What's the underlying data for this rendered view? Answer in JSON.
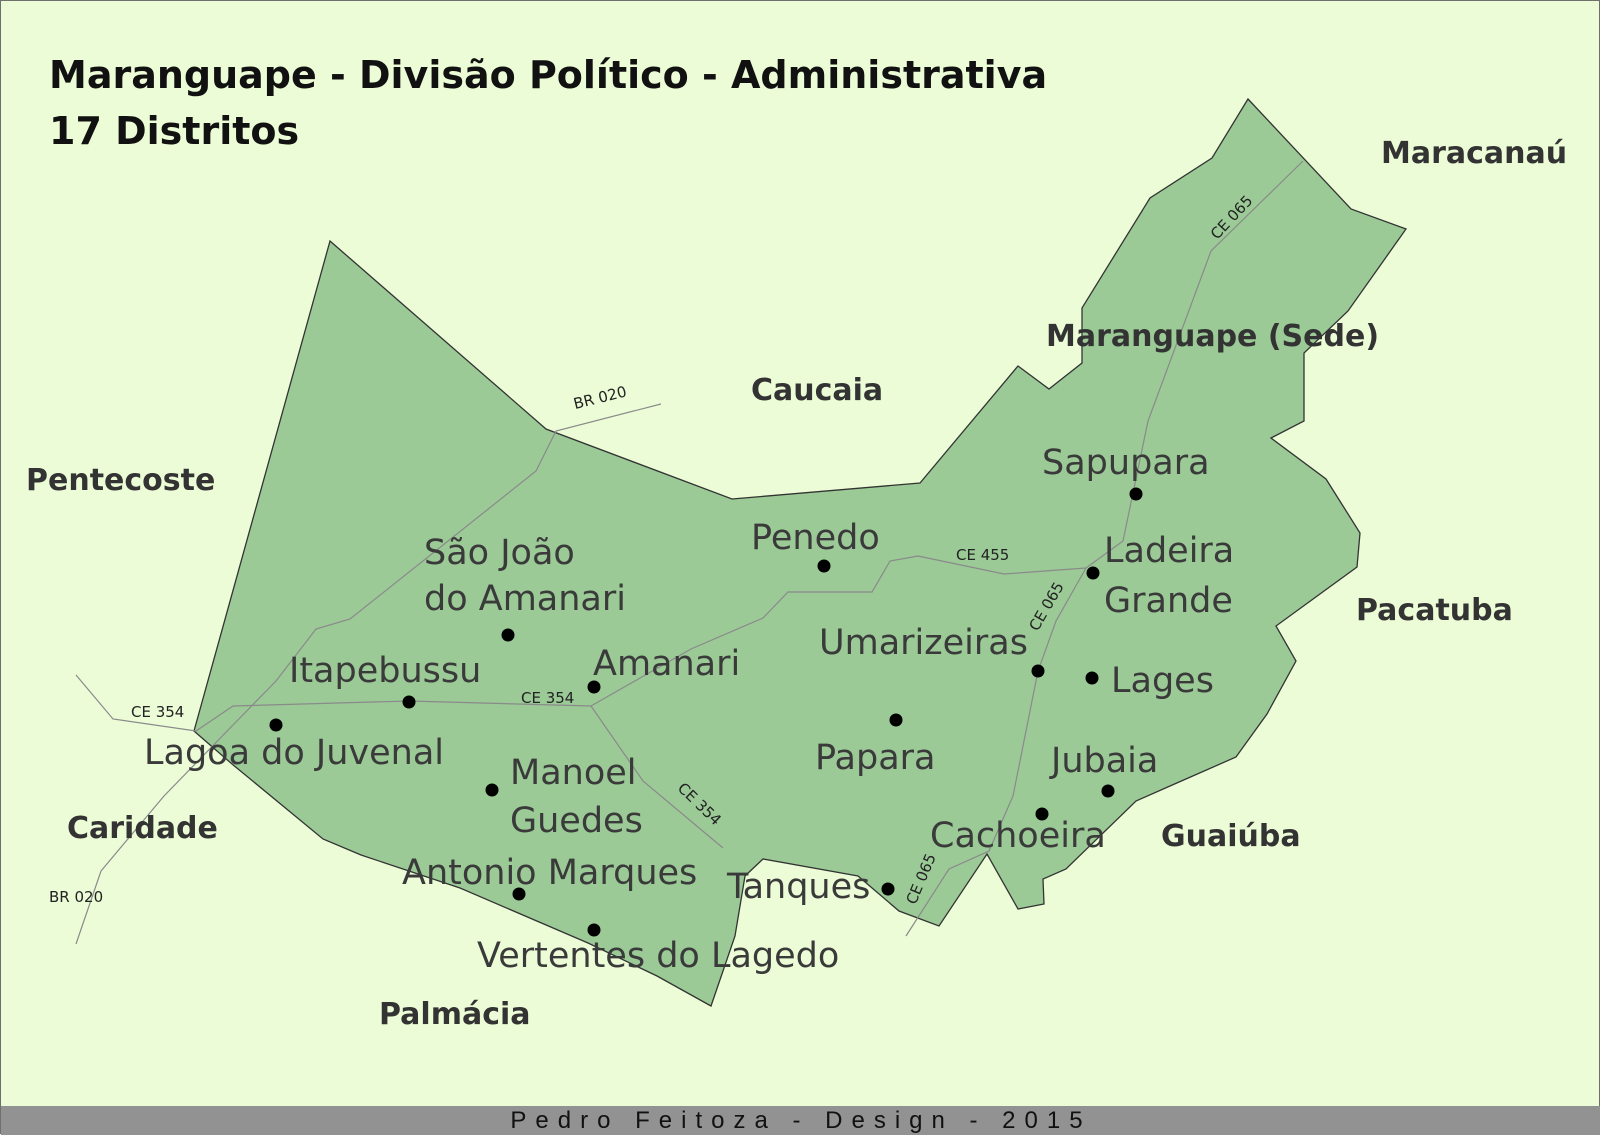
{
  "title": {
    "line1": "Maranguape - Divisão Político - Administrativa",
    "line2": "17 Distritos"
  },
  "municipalities": {
    "maracanau": "Maracanaú",
    "maranguape_sede": "Maranguape (Sede)",
    "caucaia": "Caucaia",
    "pentecoste": "Pentecoste",
    "pacatuba": "Pacatuba",
    "caridade": "Caridade",
    "guaiuba": "Guaiúba",
    "palmacia": "Palmácia"
  },
  "districts": {
    "sapupara": "Sapupara",
    "penedo": "Penedo",
    "sao_joao_line1": "São João",
    "sao_joao_line2": "do Amanari",
    "ladeira_line1": "Ladeira",
    "ladeira_line2": "Grande",
    "itapebussu": "Itapebussu",
    "amanari": "Amanari",
    "umarizeiras": "Umarizeiras",
    "lages": "Lages",
    "lagoa_do_juvenal": "Lagoa do Juvenal",
    "manoel_line1": "Manoel",
    "manoel_line2": "Guedes",
    "papara": "Papara",
    "jubaia": "Jubaia",
    "cachoeira": "Cachoeira",
    "antonio_marques": "Antonio Marques",
    "tanques": "Tanques",
    "vertentes_do_lagedo": "Vertentes do Lagedo"
  },
  "roads": {
    "br020_top": "BR 020",
    "br020_bottom": "BR 020",
    "ce065_top": "CE 065",
    "ce065_mid": "CE 065",
    "ce065_bottom": "CE 065",
    "ce455": "CE 455",
    "ce354_left": "CE 354",
    "ce354_mid": "CE 354",
    "ce354_diag": "CE 354"
  },
  "footer": "Pedro Feitoza - Design - 2015",
  "colors": {
    "background": "#ecfcd6",
    "municipality_fill": "#9bca97",
    "boundary_stroke": "#333333",
    "road_stroke": "#8a8a8a",
    "footer_bar": "#929292"
  }
}
